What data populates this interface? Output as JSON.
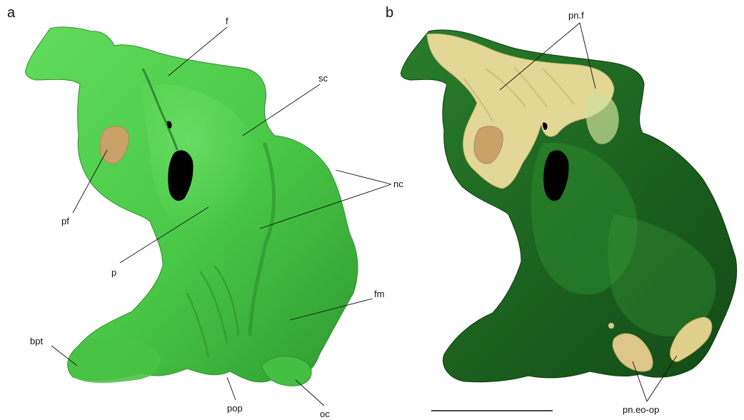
{
  "panels": {
    "a": {
      "letter": "a",
      "labels": {
        "f": "f",
        "sc": "sc",
        "nc": "nc",
        "pf": "pf",
        "p": "p",
        "fm": "fm",
        "bpt": "bpt",
        "pop": "pop",
        "oc": "oc"
      }
    },
    "b": {
      "letter": "b",
      "labels": {
        "pnf": "pn.f",
        "pneoop": "pn.eo-op"
      }
    }
  },
  "colors": {
    "bone_light": "#5fd95a",
    "bone_mid": "#3fb83c",
    "bone_dark": "#1f6b22",
    "bone_deep": "#14501a",
    "foramen": "#000000",
    "pneumatic_fill": "#d7c585",
    "pneumatic_pale": "#e8de9f",
    "pf_patch": "#c9a26a"
  }
}
